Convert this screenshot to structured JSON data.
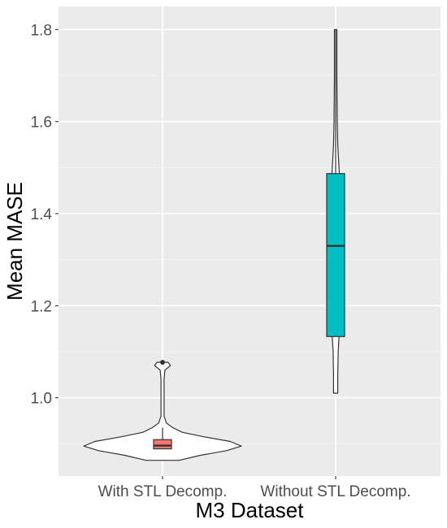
{
  "chart_data": {
    "type": "violin",
    "xlabel": "M3 Dataset",
    "ylabel": "Mean MASE",
    "ylim": [
      0.83,
      1.85
    ],
    "y_ticks": [
      1.0,
      1.2,
      1.4,
      1.6,
      1.8
    ],
    "y_tick_labels": [
      "1.0",
      "1.2",
      "1.4",
      "1.6",
      "1.8"
    ],
    "categories": [
      "With STL Decomp.",
      "Without STL Decomp."
    ],
    "grid": true,
    "legend": "none",
    "background": "#ebebeb",
    "series": [
      {
        "category": "With STL Decomp.",
        "fill": "#f8766d",
        "box": {
          "lower": 0.888,
          "q1": 0.889,
          "median": 0.896,
          "q3": 0.909,
          "upper": 0.935
        },
        "outliers": [
          1.077
        ],
        "violin": [
          [
            0.864,
            0.21
          ],
          [
            0.875,
            0.48
          ],
          [
            0.885,
            0.81
          ],
          [
            0.895,
            1.0
          ],
          [
            0.905,
            0.86
          ],
          [
            0.915,
            0.53
          ],
          [
            0.925,
            0.25
          ],
          [
            0.935,
            0.13
          ],
          [
            0.945,
            0.05
          ],
          [
            0.96,
            0.02
          ],
          [
            1.0,
            0.02
          ],
          [
            1.04,
            0.02
          ],
          [
            1.06,
            0.03
          ],
          [
            1.07,
            0.1
          ],
          [
            1.077,
            0.07
          ]
        ]
      },
      {
        "category": "Without STL Decomp.",
        "fill": "#00bfc4",
        "box": {
          "lower": 1.133,
          "q1": 1.133,
          "median": 1.33,
          "q3": 1.487,
          "upper": 1.8
        },
        "outliers": [],
        "violin": [
          [
            1.01,
            0.05
          ],
          [
            1.05,
            0.05
          ],
          [
            1.1,
            0.06
          ],
          [
            1.13,
            0.08
          ],
          [
            1.2,
            0.1
          ],
          [
            1.3,
            0.1
          ],
          [
            1.4,
            0.1
          ],
          [
            1.47,
            0.1
          ],
          [
            1.5,
            0.08
          ],
          [
            1.55,
            0.05
          ],
          [
            1.6,
            0.04
          ],
          [
            1.7,
            0.03
          ],
          [
            1.8,
            0.03
          ]
        ]
      }
    ]
  }
}
